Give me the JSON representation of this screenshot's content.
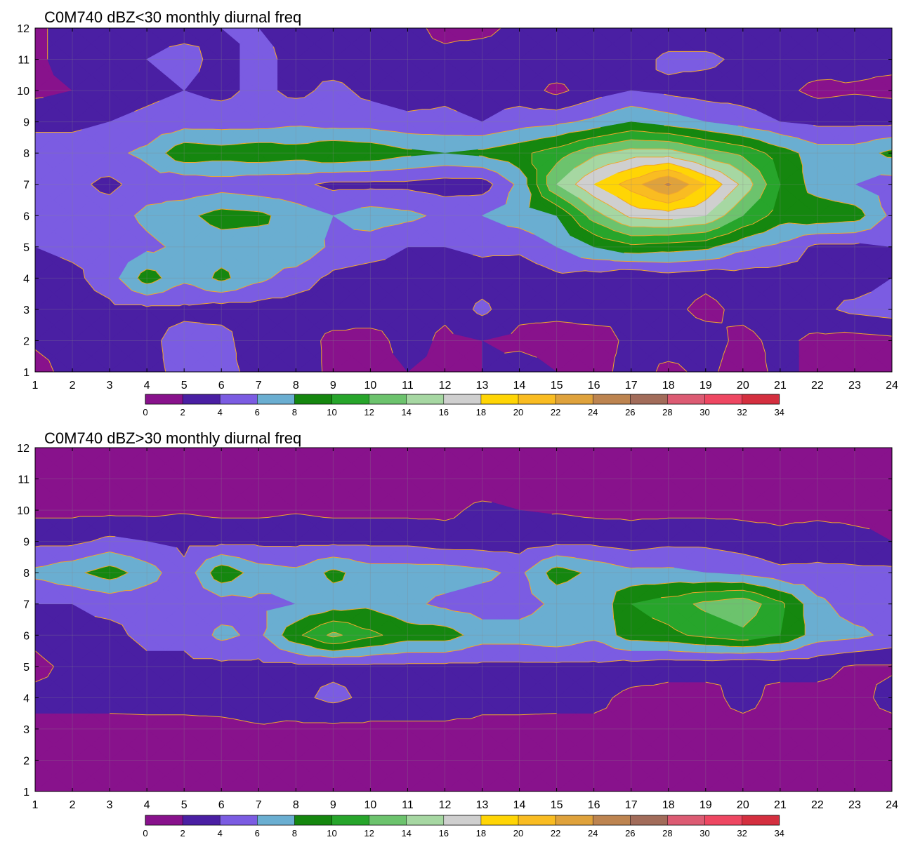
{
  "chart_data": [
    {
      "type": "heatmap",
      "title": "C0M740 dBZ<30 monthly diurnal freq",
      "xlabel": "",
      "ylabel": "",
      "x": [
        1,
        2,
        3,
        4,
        5,
        6,
        7,
        8,
        9,
        10,
        11,
        12,
        13,
        14,
        15,
        16,
        17,
        18,
        19,
        20,
        21,
        22,
        23,
        24
      ],
      "y": [
        1,
        2,
        3,
        4,
        5,
        6,
        7,
        8,
        9,
        10,
        11,
        12
      ],
      "xlim": [
        1,
        24
      ],
      "ylim": [
        1,
        12
      ],
      "grid": true,
      "levels": [
        0,
        2,
        4,
        6,
        8,
        10,
        12,
        14,
        16,
        18,
        20,
        22,
        24,
        26,
        28,
        30,
        32,
        34
      ],
      "values": [
        [
          1.5,
          2.5,
          3.0,
          3.5,
          4.5,
          5.0,
          3.0,
          3.2,
          1.5,
          1.0,
          2.0,
          1.5,
          2.0,
          3.0,
          2.0,
          1.0,
          3.0,
          1.5,
          2.5,
          1.0,
          2.5,
          1.5,
          1.8,
          1.5
        ],
        [
          2.2,
          2.5,
          3.0,
          3.5,
          4.8,
          5.0,
          2.0,
          3.0,
          1.5,
          1.0,
          3.0,
          1.5,
          2.0,
          1.5,
          1.2,
          1.0,
          2.5,
          3.0,
          2.8,
          1.5,
          2.5,
          1.5,
          1.2,
          1.5
        ],
        [
          2.5,
          3.0,
          3.5,
          3.5,
          3.5,
          3.0,
          3.0,
          3.0,
          3.0,
          3.5,
          3.0,
          2.5,
          4.5,
          2.5,
          2.5,
          3.0,
          2.0,
          2.5,
          1.5,
          2.5,
          3.0,
          3.5,
          4.5,
          5.0
        ],
        [
          3.0,
          3.5,
          5.0,
          9.0,
          6.5,
          8.5,
          6.5,
          5.0,
          3.5,
          3.0,
          3.0,
          2.5,
          3.0,
          2.5,
          3.5,
          3.0,
          2.0,
          3.0,
          2.5,
          3.0,
          3.0,
          3.5,
          3.0,
          4.0
        ],
        [
          4.0,
          4.5,
          4.5,
          5.5,
          6.5,
          7.0,
          7.0,
          7.8,
          5.5,
          5.0,
          4.0,
          4.0,
          4.5,
          4.5,
          6.0,
          8.0,
          9.5,
          9.0,
          8.5,
          6.5,
          5.5,
          3.5,
          3.5,
          4.0
        ],
        [
          5.0,
          5.0,
          5.0,
          6.5,
          7.5,
          8.8,
          8.5,
          7.0,
          6.0,
          7.0,
          6.5,
          5.5,
          6.0,
          7.0,
          8.0,
          13.0,
          16.5,
          17.0,
          16.0,
          12.0,
          9.0,
          9.5,
          9.0,
          5.5
        ],
        [
          5.0,
          4.5,
          3.5,
          5.0,
          4.5,
          5.0,
          4.5,
          4.5,
          3.5,
          3.5,
          3.5,
          3.0,
          3.0,
          6.5,
          14.0,
          18.0,
          21.0,
          24.5,
          20.0,
          15.5,
          10.0,
          7.0,
          6.0,
          5.0
        ],
        [
          5.0,
          5.0,
          5.5,
          6.5,
          9.5,
          9.0,
          9.5,
          9.0,
          10.0,
          9.5,
          8.5,
          8.0,
          8.5,
          9.5,
          11.0,
          13.5,
          15.0,
          15.0,
          13.0,
          11.5,
          9.0,
          7.0,
          7.0,
          8.5
        ],
        [
          3.5,
          3.5,
          4.0,
          4.5,
          5.0,
          5.0,
          5.0,
          5.5,
          5.0,
          5.0,
          4.5,
          4.5,
          4.0,
          5.0,
          5.5,
          6.5,
          8.0,
          7.0,
          6.0,
          5.0,
          4.0,
          3.5,
          3.5,
          3.5
        ],
        [
          1.5,
          2.0,
          3.0,
          3.5,
          4.0,
          3.5,
          4.5,
          3.5,
          4.5,
          3.5,
          3.0,
          3.5,
          3.0,
          3.0,
          1.5,
          3.0,
          4.0,
          3.5,
          3.0,
          3.0,
          2.5,
          1.5,
          1.8,
          1.5
        ],
        [
          1.5,
          3.0,
          3.0,
          4.0,
          4.5,
          3.5,
          4.5,
          3.5,
          3.0,
          3.0,
          2.5,
          2.5,
          3.0,
          3.0,
          3.5,
          3.0,
          3.0,
          4.5,
          4.5,
          3.5,
          3.0,
          3.0,
          2.5,
          2.5
        ],
        [
          1.5,
          3.0,
          3.0,
          3.5,
          3.5,
          4.0,
          4.0,
          3.5,
          2.5,
          2.5,
          2.5,
          1.5,
          1.5,
          2.5,
          2.5,
          2.5,
          2.0,
          2.5,
          2.5,
          2.5,
          2.5,
          2.5,
          2.5,
          2.5
        ]
      ]
    },
    {
      "type": "heatmap",
      "title": "C0M740 dBZ>30 monthly diurnal freq",
      "xlabel": "",
      "ylabel": "",
      "x": [
        1,
        2,
        3,
        4,
        5,
        6,
        7,
        8,
        9,
        10,
        11,
        12,
        13,
        14,
        15,
        16,
        17,
        18,
        19,
        20,
        21,
        22,
        23,
        24
      ],
      "y": [
        1,
        2,
        3,
        4,
        5,
        6,
        7,
        8,
        9,
        10,
        11,
        12
      ],
      "xlim": [
        1,
        24
      ],
      "ylim": [
        1,
        12
      ],
      "grid": true,
      "levels": [
        0,
        2,
        4,
        6,
        8,
        10,
        12,
        14,
        16,
        18,
        20,
        22,
        24,
        26,
        28,
        30,
        32,
        34
      ],
      "values": [
        [
          0.8,
          0.8,
          0.8,
          0.8,
          0.8,
          0.8,
          0.8,
          0.8,
          0.8,
          0.8,
          0.8,
          0.8,
          0.8,
          0.8,
          0.8,
          0.8,
          0.8,
          0.8,
          0.8,
          0.8,
          0.8,
          0.8,
          0.8,
          0.8
        ],
        [
          1.0,
          1.0,
          1.0,
          1.0,
          1.0,
          1.0,
          1.0,
          1.0,
          1.0,
          1.0,
          1.0,
          1.0,
          1.0,
          1.0,
          1.0,
          1.0,
          1.0,
          1.0,
          1.0,
          1.0,
          1.0,
          1.0,
          1.0,
          1.0
        ],
        [
          1.5,
          1.5,
          1.5,
          1.5,
          1.5,
          1.5,
          1.8,
          1.5,
          1.5,
          1.5,
          1.5,
          1.5,
          1.5,
          1.5,
          1.5,
          1.5,
          1.5,
          1.5,
          1.5,
          1.5,
          1.5,
          1.5,
          1.5,
          1.5
        ],
        [
          2.5,
          2.5,
          2.5,
          2.6,
          2.6,
          2.8,
          3.0,
          3.5,
          4.5,
          3.5,
          3.5,
          3.5,
          2.6,
          2.6,
          2.5,
          2.5,
          1.5,
          1.5,
          1.5,
          2.5,
          1.5,
          1.5,
          1.5,
          2.5
        ],
        [
          1.5,
          2.5,
          2.5,
          3.5,
          3.5,
          3.5,
          3.5,
          3.5,
          3.5,
          3.5,
          3.5,
          3.5,
          3.5,
          3.5,
          3.5,
          3.5,
          3.0,
          2.5,
          2.5,
          2.0,
          2.5,
          2.5,
          1.8,
          1.8
        ],
        [
          2.5,
          3.5,
          3.5,
          4.5,
          4.5,
          6.5,
          5.5,
          9.5,
          12.5,
          10.5,
          9.0,
          9.0,
          7.0,
          7.0,
          7.5,
          6.5,
          9.0,
          9.5,
          10.5,
          11.5,
          10.0,
          7.0,
          6.5,
          5.5
        ],
        [
          4.0,
          4.0,
          4.5,
          4.5,
          4.5,
          5.0,
          5.5,
          6.0,
          7.0,
          7.5,
          6.5,
          5.5,
          5.0,
          5.0,
          6.5,
          6.0,
          10.0,
          11.0,
          12.5,
          13.5,
          10.5,
          6.5,
          5.0,
          5.0
        ],
        [
          6.5,
          7.5,
          9.0,
          7.0,
          4.5,
          9.5,
          7.0,
          6.5,
          8.5,
          7.0,
          7.0,
          7.0,
          6.5,
          5.5,
          9.0,
          7.5,
          6.5,
          6.5,
          6.0,
          5.5,
          4.5,
          4.5,
          4.5,
          4.5
        ],
        [
          3.5,
          3.5,
          4.5,
          4.0,
          3.5,
          3.5,
          3.5,
          3.5,
          3.5,
          3.5,
          3.5,
          3.0,
          3.0,
          3.0,
          3.5,
          3.5,
          3.0,
          3.5,
          3.5,
          3.0,
          2.5,
          3.0,
          2.5,
          2.0
        ],
        [
          1.5,
          1.5,
          1.5,
          1.5,
          1.8,
          1.5,
          1.5,
          1.8,
          1.5,
          1.5,
          1.5,
          1.5,
          2.5,
          2.0,
          1.8,
          1.5,
          1.5,
          1.5,
          1.5,
          1.5,
          1.5,
          1.5,
          1.5,
          1.5
        ],
        [
          0.8,
          0.8,
          0.8,
          0.8,
          0.8,
          0.8,
          0.8,
          0.8,
          0.8,
          0.8,
          0.8,
          0.8,
          0.8,
          0.8,
          0.8,
          0.8,
          0.8,
          0.8,
          0.8,
          0.8,
          0.8,
          0.8,
          0.8,
          0.8
        ],
        [
          0.5,
          0.5,
          0.5,
          0.5,
          0.5,
          0.5,
          0.5,
          0.5,
          0.5,
          0.5,
          0.5,
          0.5,
          0.5,
          0.5,
          0.5,
          0.5,
          0.5,
          0.5,
          0.5,
          0.5,
          0.5,
          0.5,
          0.5,
          0.5
        ]
      ]
    }
  ],
  "colorbar": {
    "tick_labels": [
      "0",
      "2",
      "4",
      "6",
      "8",
      "10",
      "12",
      "14",
      "16",
      "18",
      "20",
      "22",
      "24",
      "26",
      "28",
      "30",
      "32",
      "34"
    ],
    "colors": [
      "#88128c",
      "#4a1fa3",
      "#7b5ce2",
      "#6aaed1",
      "#15870f",
      "#27a52b",
      "#6cc36d",
      "#a6d7a2",
      "#cfcfcf",
      "#ffd505",
      "#f9bc22",
      "#dfa23c",
      "#bd8450",
      "#a26c5a",
      "#dc5b73",
      "#ee4762",
      "#d42f3f"
    ]
  },
  "contour_line_color": "#f2a62b"
}
